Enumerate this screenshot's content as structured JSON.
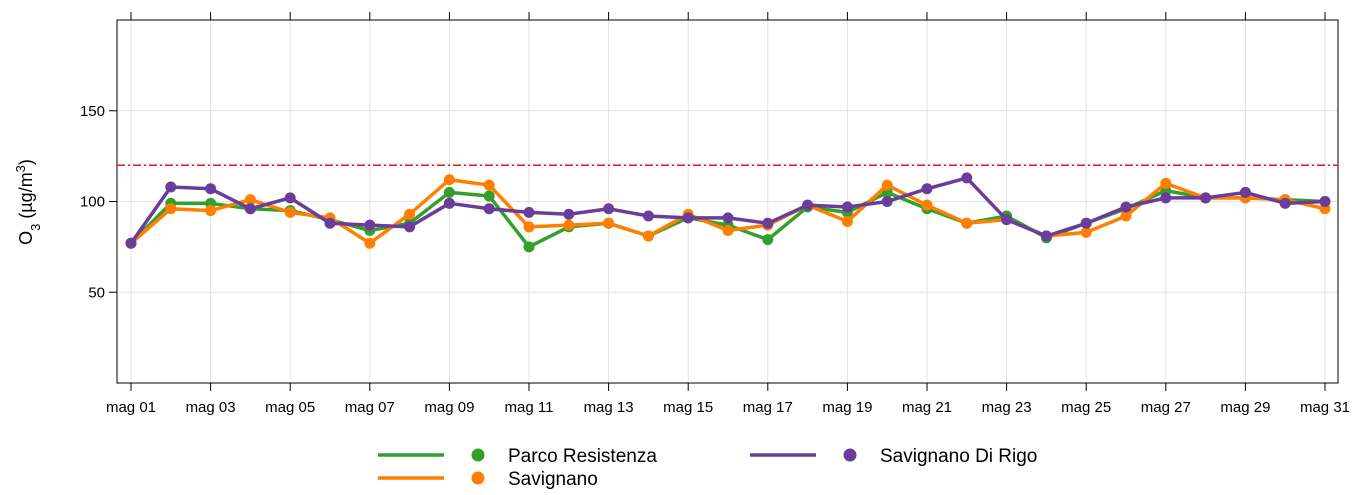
{
  "chart_data": {
    "type": "line",
    "ylabel": {
      "main": "O",
      "sub": "3",
      "mid": " (µg/m",
      "sup": "3",
      "end": ")"
    },
    "categories": [
      "mag 01",
      null,
      "mag 03",
      null,
      "mag 05",
      null,
      "mag 07",
      null,
      "mag 09",
      null,
      "mag 11",
      null,
      "mag 13",
      null,
      "mag 15",
      null,
      "mag 17",
      null,
      "mag 19",
      null,
      "mag 21",
      null,
      "mag 23",
      null,
      "mag 25",
      null,
      "mag 27",
      null,
      "mag 29",
      null,
      "mag 31"
    ],
    "series": [
      {
        "name": "Parco Resistenza",
        "color": "#33a02c",
        "values": [
          77,
          99,
          99,
          96,
          95,
          90,
          84,
          88,
          105,
          103,
          75,
          86,
          88,
          81,
          91,
          87,
          79,
          97,
          94,
          105,
          96,
          88,
          92,
          80,
          88,
          96,
          106,
          102,
          102,
          101,
          100
        ]
      },
      {
        "name": "Savignano",
        "color": "#ff7f00",
        "values": [
          77,
          96,
          95,
          101,
          94,
          91,
          77,
          93,
          112,
          109,
          86,
          87,
          88,
          81,
          93,
          84,
          87,
          98,
          89,
          109,
          98,
          88,
          90,
          81,
          83,
          92,
          110,
          102,
          102,
          101,
          96
        ]
      },
      {
        "name": "Savignano Di Rigo",
        "color": "#6a3d9a",
        "values": [
          77,
          108,
          107,
          96,
          102,
          88,
          87,
          86,
          99,
          96,
          94,
          93,
          96,
          92,
          91,
          91,
          88,
          98,
          97,
          100,
          107,
          113,
          90,
          81,
          88,
          97,
          102,
          102,
          105,
          99,
          100
        ]
      }
    ],
    "ylim": [
      0,
      200
    ],
    "yticks": [
      50,
      100,
      150
    ],
    "grid": true,
    "hline": {
      "value": 120,
      "color": "#e31a1c"
    },
    "legend": "bottom"
  }
}
